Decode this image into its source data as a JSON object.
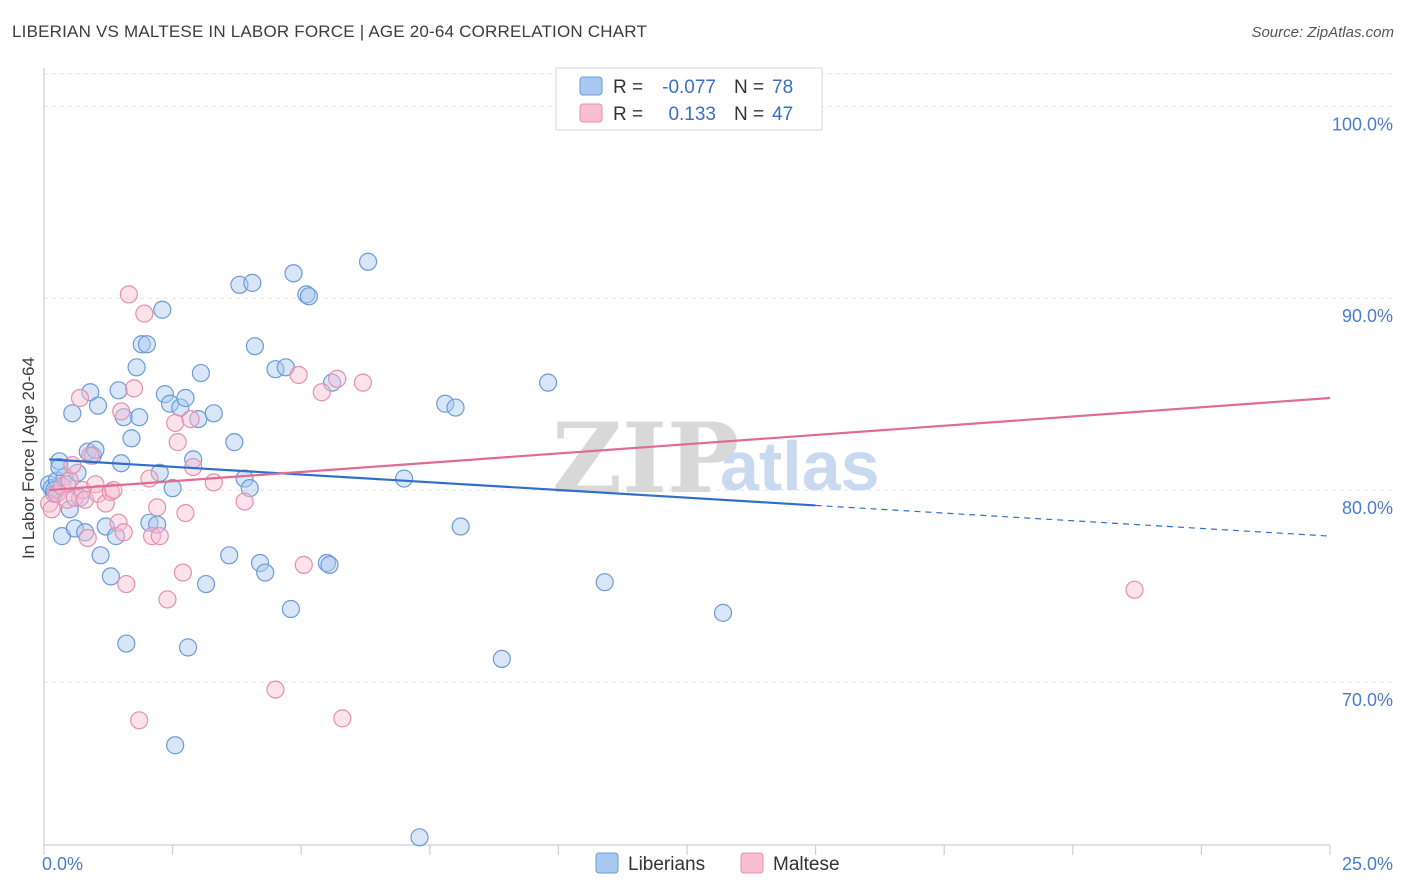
{
  "header": {
    "title": "LIBERIAN VS MALTESE IN LABOR FORCE | AGE 20-64 CORRELATION CHART",
    "source": "Source: ZipAtlas.com"
  },
  "watermark": {
    "zip": "ZIP",
    "atlas": "atlas"
  },
  "legend_top": [
    {
      "r_label": "R =",
      "r_value": "-0.077",
      "n_label": "N =",
      "n_value": "78",
      "color": "#a9c8f0",
      "stroke": "#6a9bd8"
    },
    {
      "r_label": "R =",
      "r_value": "0.133",
      "n_label": "N =",
      "n_value": "47",
      "color": "#f7bfd2",
      "stroke": "#e78fae"
    }
  ],
  "legend_bottom": [
    {
      "label": "Liberians",
      "color": "#a9c8f0",
      "stroke": "#6a9bd8"
    },
    {
      "label": "Maltese",
      "color": "#f7bfd2",
      "stroke": "#e78fae"
    }
  ],
  "chart_data": {
    "type": "scatter",
    "ylabel": "In Labor Force | Age 20-64",
    "xlim": [
      0,
      25
    ],
    "ylim": [
      61.5,
      102
    ],
    "x_tick_labels": [
      "0.0%",
      "25.0%"
    ],
    "y_ticks": [
      70,
      80,
      90,
      100
    ],
    "y_tick_labels": [
      "70.0%",
      "80.0%",
      "90.0%",
      "100.0%"
    ],
    "grid": true,
    "series": [
      {
        "name": "Liberians",
        "color": "#a9c8f0",
        "stroke": "#6a9bd8",
        "trend": {
          "x0": 0.1,
          "y0": 81.6,
          "x1": 15.0,
          "y1": 79.2,
          "dash_to_x": 25.0,
          "dash_to_y": 77.6,
          "color": "#2f6fc8"
        },
        "points": [
          [
            0.1,
            80.3
          ],
          [
            0.15,
            80.1
          ],
          [
            0.2,
            79.8
          ],
          [
            0.25,
            80.5
          ],
          [
            0.3,
            81.5
          ],
          [
            0.35,
            77.6
          ],
          [
            0.4,
            80.7
          ],
          [
            0.45,
            80.3
          ],
          [
            0.5,
            79.0
          ],
          [
            0.55,
            84.0
          ],
          [
            0.6,
            78.0
          ],
          [
            0.65,
            80.9
          ],
          [
            0.7,
            79.6
          ],
          [
            0.8,
            77.8
          ],
          [
            0.85,
            82.0
          ],
          [
            0.9,
            85.1
          ],
          [
            0.95,
            81.8
          ],
          [
            1.0,
            82.1
          ],
          [
            1.05,
            84.4
          ],
          [
            1.1,
            76.6
          ],
          [
            1.2,
            78.1
          ],
          [
            1.3,
            75.5
          ],
          [
            1.4,
            77.6
          ],
          [
            1.45,
            85.2
          ],
          [
            1.5,
            81.4
          ],
          [
            1.55,
            83.8
          ],
          [
            1.6,
            72.0
          ],
          [
            1.7,
            82.7
          ],
          [
            1.8,
            86.4
          ],
          [
            1.85,
            83.8
          ],
          [
            1.9,
            87.6
          ],
          [
            2.0,
            87.6
          ],
          [
            2.05,
            78.3
          ],
          [
            2.2,
            78.2
          ],
          [
            2.25,
            80.9
          ],
          [
            2.3,
            89.4
          ],
          [
            2.35,
            85.0
          ],
          [
            2.45,
            84.5
          ],
          [
            2.5,
            80.1
          ],
          [
            2.55,
            66.7
          ],
          [
            2.65,
            84.3
          ],
          [
            2.75,
            84.8
          ],
          [
            2.8,
            71.8
          ],
          [
            2.9,
            81.6
          ],
          [
            3.0,
            83.7
          ],
          [
            3.05,
            86.1
          ],
          [
            3.15,
            75.1
          ],
          [
            3.3,
            84.0
          ],
          [
            3.6,
            76.6
          ],
          [
            3.7,
            82.5
          ],
          [
            3.8,
            90.7
          ],
          [
            3.9,
            80.6
          ],
          [
            4.0,
            80.1
          ],
          [
            4.05,
            90.8
          ],
          [
            4.1,
            87.5
          ],
          [
            4.2,
            76.2
          ],
          [
            4.3,
            75.7
          ],
          [
            4.5,
            86.3
          ],
          [
            4.7,
            86.4
          ],
          [
            4.8,
            73.8
          ],
          [
            4.85,
            91.3
          ],
          [
            5.1,
            90.2
          ],
          [
            5.15,
            90.1
          ],
          [
            5.5,
            76.2
          ],
          [
            5.55,
            76.1
          ],
          [
            5.6,
            85.6
          ],
          [
            6.3,
            91.9
          ],
          [
            7.0,
            80.6
          ],
          [
            7.3,
            61.9
          ],
          [
            7.8,
            84.5
          ],
          [
            8.0,
            84.3
          ],
          [
            8.1,
            78.1
          ],
          [
            8.9,
            71.2
          ],
          [
            9.8,
            85.6
          ],
          [
            10.9,
            75.2
          ],
          [
            13.2,
            73.6
          ],
          [
            0.2,
            80.0
          ],
          [
            0.3,
            81.2
          ]
        ]
      },
      {
        "name": "Maltese",
        "color": "#f7bfd2",
        "stroke": "#e78fae",
        "trend": {
          "x0": 0.1,
          "y0": 80.0,
          "x1": 25.0,
          "y1": 84.8,
          "color": "#e06b93"
        },
        "points": [
          [
            0.1,
            79.3
          ],
          [
            0.15,
            79.0
          ],
          [
            0.25,
            79.8
          ],
          [
            0.35,
            80.2
          ],
          [
            0.45,
            79.5
          ],
          [
            0.5,
            80.5
          ],
          [
            0.55,
            81.3
          ],
          [
            0.6,
            79.6
          ],
          [
            0.7,
            84.8
          ],
          [
            0.75,
            80.0
          ],
          [
            0.8,
            79.5
          ],
          [
            0.85,
            77.5
          ],
          [
            0.9,
            81.8
          ],
          [
            1.0,
            80.3
          ],
          [
            1.05,
            79.8
          ],
          [
            1.2,
            79.3
          ],
          [
            1.3,
            79.9
          ],
          [
            1.35,
            80.0
          ],
          [
            1.45,
            78.3
          ],
          [
            1.5,
            84.1
          ],
          [
            1.55,
            77.8
          ],
          [
            1.6,
            75.1
          ],
          [
            1.65,
            90.2
          ],
          [
            1.75,
            85.3
          ],
          [
            1.85,
            68.0
          ],
          [
            1.95,
            89.2
          ],
          [
            2.05,
            80.6
          ],
          [
            2.1,
            77.6
          ],
          [
            2.2,
            79.1
          ],
          [
            2.25,
            77.6
          ],
          [
            2.4,
            74.3
          ],
          [
            2.55,
            83.5
          ],
          [
            2.6,
            82.5
          ],
          [
            2.7,
            75.7
          ],
          [
            2.75,
            78.8
          ],
          [
            2.85,
            83.7
          ],
          [
            2.9,
            81.2
          ],
          [
            3.3,
            80.4
          ],
          [
            3.9,
            79.4
          ],
          [
            4.5,
            69.6
          ],
          [
            4.95,
            86.0
          ],
          [
            5.05,
            76.1
          ],
          [
            5.4,
            85.1
          ],
          [
            5.7,
            85.8
          ],
          [
            5.8,
            68.1
          ],
          [
            6.2,
            85.6
          ],
          [
            21.2,
            74.8
          ]
        ]
      }
    ]
  }
}
